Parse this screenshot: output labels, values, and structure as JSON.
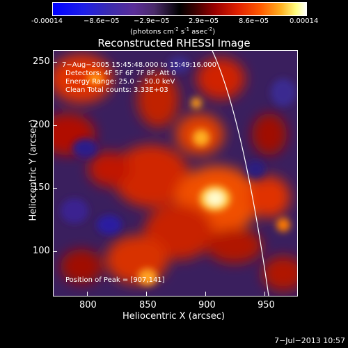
{
  "colorbar": {
    "ticks": [
      "-0.00014",
      "−8.6e−05",
      "−2.9e−05",
      "2.9e−05",
      "8.6e−05",
      "0.00014"
    ],
    "units_main": "(photons cm",
    "units_sup1": "-2",
    "units_mid": " s",
    "units_sup2": "-1",
    "units_end": " asec",
    "units_sup3": "-2",
    "units_close": ")"
  },
  "title": "Reconstructed RHESSI Image",
  "info": {
    "time": "7−Aug−2005 15:45:48.000 to 15:49:16.000",
    "detectors": "Detectors: 4F 5F 6F 7F 8F, Att 0",
    "energy": "Energy Range: 25.0 − 50.0 keV",
    "clean": "Clean    Total counts: 3.33E+03",
    "peak": "Position of Peak = [907,141]"
  },
  "axes": {
    "y_title": "Heliocentric Y (arcsec)",
    "x_title": "Heliocentric X (arcsec)",
    "y_ticks": [
      "250",
      "200",
      "150",
      "100"
    ],
    "x_ticks": [
      "800",
      "850",
      "900",
      "950"
    ]
  },
  "timestamp": "7−Jul−2013 10:57"
}
